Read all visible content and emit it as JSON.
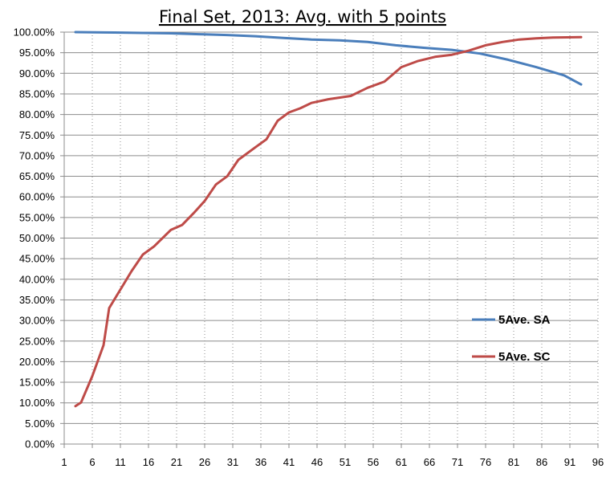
{
  "chart_data": {
    "type": "line",
    "title": "Final Set, 2013: Avg. with 5 points",
    "xlabel": "",
    "ylabel": "",
    "xlim": [
      1,
      96
    ],
    "ylim": [
      0,
      1
    ],
    "x_ticks": [
      1,
      6,
      11,
      16,
      21,
      26,
      31,
      36,
      41,
      46,
      51,
      56,
      61,
      66,
      71,
      76,
      81,
      86,
      91,
      96
    ],
    "y_ticks": [
      0,
      0.05,
      0.1,
      0.15,
      0.2,
      0.25,
      0.3,
      0.35,
      0.4,
      0.45,
      0.5,
      0.55,
      0.6,
      0.65,
      0.7,
      0.75,
      0.8,
      0.85,
      0.9,
      0.95,
      1.0
    ],
    "y_tick_labels": [
      "0.00%",
      "5.00%",
      "10.00%",
      "15.00%",
      "20.00%",
      "25.00%",
      "30.00%",
      "35.00%",
      "40.00%",
      "45.00%",
      "50.00%",
      "55.00%",
      "60.00%",
      "65.00%",
      "70.00%",
      "75.00%",
      "80.00%",
      "85.00%",
      "90.00%",
      "95.00%",
      "100.00%"
    ],
    "grid": {
      "horizontal": true,
      "vertical": true
    },
    "legend_position": "right",
    "series": [
      {
        "name": "5Ave. SA",
        "color": "#4a7ebb",
        "points": [
          [
            3,
            1.0
          ],
          [
            10,
            0.999
          ],
          [
            20,
            0.997
          ],
          [
            25,
            0.995
          ],
          [
            30,
            0.993
          ],
          [
            35,
            0.99
          ],
          [
            40,
            0.986
          ],
          [
            45,
            0.982
          ],
          [
            50,
            0.98
          ],
          [
            55,
            0.976
          ],
          [
            60,
            0.968
          ],
          [
            65,
            0.962
          ],
          [
            70,
            0.957
          ],
          [
            75,
            0.948
          ],
          [
            80,
            0.933
          ],
          [
            85,
            0.915
          ],
          [
            90,
            0.895
          ],
          [
            93,
            0.873
          ]
        ]
      },
      {
        "name": "5Ave. SC",
        "color": "#be4b48",
        "points": [
          [
            3,
            0.092
          ],
          [
            4,
            0.101
          ],
          [
            6,
            0.165
          ],
          [
            8,
            0.24
          ],
          [
            9,
            0.33
          ],
          [
            11,
            0.375
          ],
          [
            13,
            0.42
          ],
          [
            15,
            0.46
          ],
          [
            17,
            0.48
          ],
          [
            20,
            0.52
          ],
          [
            22,
            0.532
          ],
          [
            24,
            0.56
          ],
          [
            26,
            0.59
          ],
          [
            28,
            0.63
          ],
          [
            30,
            0.65
          ],
          [
            32,
            0.69
          ],
          [
            35,
            0.72
          ],
          [
            37,
            0.74
          ],
          [
            39,
            0.785
          ],
          [
            41,
            0.805
          ],
          [
            43,
            0.815
          ],
          [
            45,
            0.828
          ],
          [
            48,
            0.837
          ],
          [
            52,
            0.845
          ],
          [
            55,
            0.865
          ],
          [
            58,
            0.88
          ],
          [
            61,
            0.915
          ],
          [
            64,
            0.93
          ],
          [
            67,
            0.94
          ],
          [
            70,
            0.945
          ],
          [
            73,
            0.955
          ],
          [
            76,
            0.968
          ],
          [
            79,
            0.976
          ],
          [
            82,
            0.982
          ],
          [
            85,
            0.985
          ],
          [
            88,
            0.987
          ],
          [
            93,
            0.988
          ]
        ]
      }
    ]
  }
}
